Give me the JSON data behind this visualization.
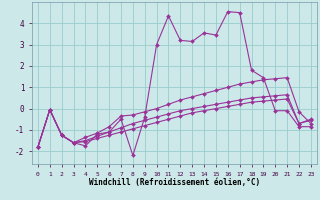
{
  "xlabel": "Windchill (Refroidissement éolien,°C)",
  "background_color": "#cce8e8",
  "grid_color": "#99cccc",
  "line_color": "#993399",
  "xlim": [
    -0.5,
    23.5
  ],
  "ylim": [
    -2.6,
    5.0
  ],
  "xticks": [
    0,
    1,
    2,
    3,
    4,
    5,
    6,
    7,
    8,
    9,
    10,
    11,
    12,
    13,
    14,
    15,
    16,
    17,
    18,
    19,
    20,
    21,
    22,
    23
  ],
  "yticks": [
    -2,
    -1,
    0,
    1,
    2,
    3,
    4
  ],
  "line1_x": [
    0,
    1,
    2,
    3,
    4,
    5,
    6,
    7,
    8,
    9,
    10,
    11,
    12,
    13,
    14,
    15,
    16,
    17,
    18,
    19,
    20,
    21,
    22,
    23
  ],
  "line1_y": [
    -1.8,
    -0.05,
    -1.25,
    -1.6,
    -1.75,
    -1.2,
    -1.1,
    -0.5,
    -2.2,
    -0.4,
    3.0,
    4.35,
    3.2,
    3.15,
    3.55,
    3.45,
    4.55,
    4.5,
    1.8,
    1.45,
    -0.1,
    -0.1,
    -0.85,
    -0.85
  ],
  "line2_x": [
    0,
    1,
    2,
    3,
    4,
    5,
    6,
    7,
    8,
    9,
    10,
    11,
    12,
    13,
    14,
    15,
    16,
    17,
    18,
    19,
    20,
    21,
    22,
    23
  ],
  "line2_y": [
    -1.8,
    -0.05,
    -1.25,
    -1.6,
    -1.35,
    -1.15,
    -0.85,
    -0.35,
    -0.3,
    -0.15,
    0.0,
    0.2,
    0.4,
    0.55,
    0.7,
    0.85,
    1.0,
    1.15,
    1.25,
    1.35,
    1.4,
    1.45,
    -0.15,
    -0.7
  ],
  "line3_x": [
    0,
    1,
    2,
    3,
    4,
    5,
    6,
    7,
    8,
    9,
    10,
    11,
    12,
    13,
    14,
    15,
    16,
    17,
    18,
    19,
    20,
    21,
    22,
    23
  ],
  "line3_y": [
    -1.8,
    -0.05,
    -1.25,
    -1.6,
    -1.5,
    -1.3,
    -1.1,
    -0.9,
    -0.7,
    -0.55,
    -0.4,
    -0.25,
    -0.1,
    0.0,
    0.1,
    0.2,
    0.3,
    0.4,
    0.5,
    0.55,
    0.6,
    0.65,
    -0.7,
    -0.55
  ],
  "line4_x": [
    0,
    1,
    2,
    3,
    4,
    5,
    6,
    7,
    8,
    9,
    10,
    11,
    12,
    13,
    14,
    15,
    16,
    17,
    18,
    19,
    20,
    21,
    22,
    23
  ],
  "line4_y": [
    -1.8,
    -0.05,
    -1.25,
    -1.6,
    -1.55,
    -1.4,
    -1.25,
    -1.1,
    -0.95,
    -0.8,
    -0.65,
    -0.5,
    -0.35,
    -0.2,
    -0.1,
    0.0,
    0.1,
    0.2,
    0.3,
    0.35,
    0.4,
    0.45,
    -0.7,
    -0.5
  ]
}
